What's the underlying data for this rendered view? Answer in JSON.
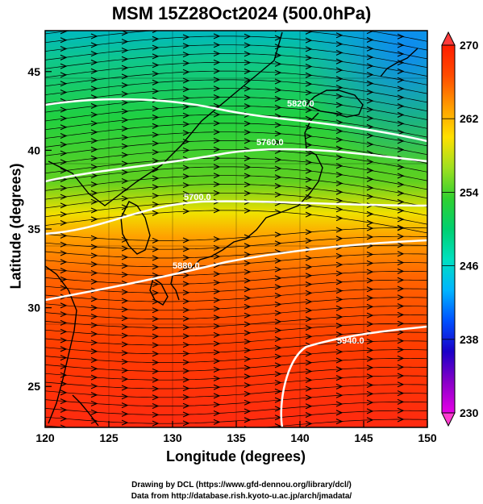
{
  "title": "MSM 15Z28Oct2024 (500.0hPa)",
  "xaxis": {
    "label": "Longitude (degrees)",
    "ticks": [
      "120",
      "125",
      "130",
      "135",
      "140",
      "145",
      "150"
    ],
    "range": [
      120,
      150
    ]
  },
  "yaxis": {
    "label": "Latitude  (degrees)",
    "ticks": [
      "25",
      "30",
      "35",
      "40",
      "45"
    ],
    "range": [
      22.4,
      47.6
    ]
  },
  "colorbar": {
    "ticks": [
      "230",
      "238",
      "246",
      "254",
      "262",
      "270"
    ],
    "range": [
      230,
      270
    ],
    "colors": [
      "#e600e6",
      "#8a00c8",
      "#1a00c8",
      "#0050ff",
      "#00b4ff",
      "#00e0c0",
      "#00d070",
      "#30d030",
      "#a0e020",
      "#ffe000",
      "#ff9c00",
      "#ff4c00",
      "#ff1c00"
    ]
  },
  "contours": [
    {
      "label": "5940.0"
    },
    {
      "label": "5880.0"
    },
    {
      "label": "5820.0"
    },
    {
      "label": "5760.0"
    },
    {
      "label": "5700.0"
    }
  ],
  "credits": {
    "line1": "Drawing by DCL (https://www.gfd-dennou.org/library/dcl/)",
    "line2": "Data from http://database.rish.kyoto-u.ac.jp/arch/jmadata/"
  },
  "chart_data": {
    "type": "heatmap",
    "title": "MSM 15Z28Oct2024 (500.0hPa)",
    "xlabel": "Longitude (degrees)",
    "ylabel": "Latitude  (degrees)",
    "xlim": [
      120,
      150
    ],
    "ylim": [
      22.4,
      47.6
    ],
    "colorbar_range": [
      230,
      270
    ],
    "temperature_bands": [
      {
        "lat": 46,
        "value": 249
      },
      {
        "lat": 42,
        "value": 254
      },
      {
        "lat": 38,
        "value": 257
      },
      {
        "lat": 35,
        "value": 261
      },
      {
        "lat": 31,
        "value": 264
      },
      {
        "lat": 26,
        "value": 266
      }
    ]
  }
}
